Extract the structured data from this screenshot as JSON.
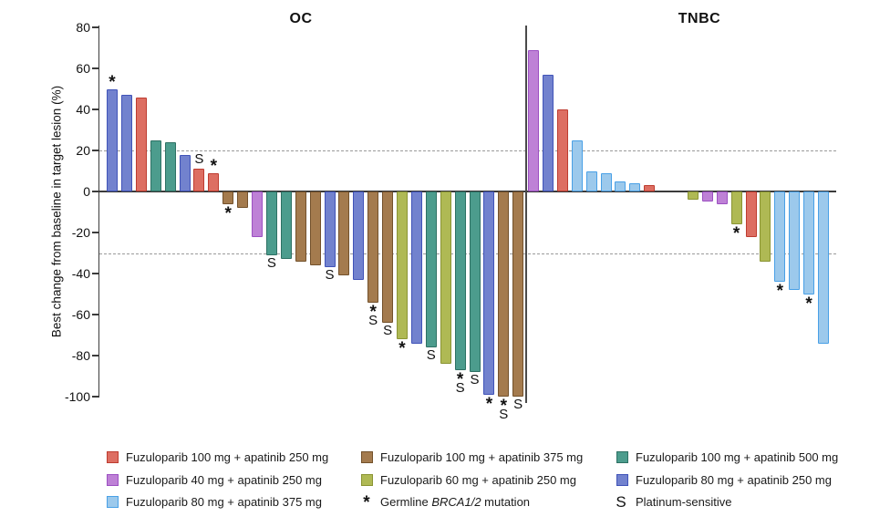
{
  "chart_data": {
    "type": "bar",
    "subtype": "waterfall",
    "ylabel": "Best change from baseline in target lesion (%)",
    "ylim": [
      -100,
      80
    ],
    "yticks": [
      80,
      60,
      40,
      20,
      0,
      -20,
      -40,
      -60,
      -80,
      -100
    ],
    "reference_lines_pct": [
      20,
      -30
    ],
    "grid": "off",
    "legend_position": "bottom",
    "marker_key": {
      "star": "Germline BRCA1/2 mutation",
      "S": "Platinum-sensitive"
    },
    "groups": [
      {
        "id": "f100a250",
        "label": "Fuzuloparib 100 mg + apatinib 250 mg",
        "fill": "#DD6E62",
        "stroke": "#BE3C30"
      },
      {
        "id": "f100a375",
        "label": "Fuzuloparib 100 mg + apatinib 375 mg",
        "fill": "#A47B4E",
        "stroke": "#73512B"
      },
      {
        "id": "f100a500",
        "label": "Fuzuloparib 100 mg + apatinib 500 mg",
        "fill": "#4C9C8D",
        "stroke": "#2E7164"
      },
      {
        "id": "f40a250",
        "label": "Fuzuloparib 40 mg + apatinib 250 mg",
        "fill": "#BE81D6",
        "stroke": "#9C50C2"
      },
      {
        "id": "f60a250",
        "label": "Fuzuloparib 60 mg + apatinib 250 mg",
        "fill": "#AFB954",
        "stroke": "#8A9433"
      },
      {
        "id": "f80a250",
        "label": "Fuzuloparib 80 mg + apatinib 250 mg",
        "fill": "#7282CE",
        "stroke": "#4053B8"
      },
      {
        "id": "f80a375",
        "label": "Fuzuloparib 80 mg + apatinib 375 mg",
        "fill": "#9CC9EC",
        "stroke": "#49A0E6"
      }
    ],
    "panels": [
      {
        "title": "OC",
        "bars": [
          {
            "value": 50,
            "group": "f80a250",
            "marks": [
              "star"
            ]
          },
          {
            "value": 47,
            "group": "f80a250",
            "marks": []
          },
          {
            "value": 46,
            "group": "f100a250",
            "marks": []
          },
          {
            "value": 25,
            "group": "f100a500",
            "marks": []
          },
          {
            "value": 24,
            "group": "f100a500",
            "marks": []
          },
          {
            "value": 18,
            "group": "f80a250",
            "marks": []
          },
          {
            "value": 11,
            "group": "f100a250",
            "marks": [
              "S"
            ]
          },
          {
            "value": 9,
            "group": "f100a250",
            "marks": [
              "star"
            ]
          },
          {
            "value": -6,
            "group": "f100a375",
            "marks": [
              "star"
            ]
          },
          {
            "value": -8,
            "group": "f100a375",
            "marks": []
          },
          {
            "value": -22,
            "group": "f40a250",
            "marks": []
          },
          {
            "value": -31,
            "group": "f100a500",
            "marks": [
              "S"
            ]
          },
          {
            "value": -33,
            "group": "f100a500",
            "marks": []
          },
          {
            "value": -34,
            "group": "f100a375",
            "marks": []
          },
          {
            "value": -36,
            "group": "f100a375",
            "marks": []
          },
          {
            "value": -37,
            "group": "f80a250",
            "marks": [
              "S"
            ]
          },
          {
            "value": -41,
            "group": "f100a375",
            "marks": []
          },
          {
            "value": -43,
            "group": "f80a250",
            "marks": []
          },
          {
            "value": -54,
            "group": "f100a375",
            "marks": [
              "star",
              "S"
            ]
          },
          {
            "value": -64,
            "group": "f100a375",
            "marks": [
              "S"
            ]
          },
          {
            "value": -72,
            "group": "f60a250",
            "marks": [
              "star"
            ]
          },
          {
            "value": -74,
            "group": "f80a250",
            "marks": []
          },
          {
            "value": -76,
            "group": "f100a500",
            "marks": [
              "S"
            ]
          },
          {
            "value": -84,
            "group": "f60a250",
            "marks": []
          },
          {
            "value": -87,
            "group": "f100a500",
            "marks": [
              "star",
              "S"
            ]
          },
          {
            "value": -88,
            "group": "f100a500",
            "marks": [
              "S"
            ]
          },
          {
            "value": -99,
            "group": "f80a250",
            "marks": [
              "star"
            ]
          },
          {
            "value": -100,
            "group": "f100a375",
            "marks": [
              "star",
              "S"
            ]
          },
          {
            "value": -100,
            "group": "f100a375",
            "marks": [
              "S"
            ]
          }
        ]
      },
      {
        "title": "TNBC",
        "bars": [
          {
            "value": 69,
            "group": "f40a250",
            "marks": []
          },
          {
            "value": 57,
            "group": "f80a250",
            "marks": []
          },
          {
            "value": 40,
            "group": "f100a250",
            "marks": []
          },
          {
            "value": 25,
            "group": "f80a375",
            "marks": []
          },
          {
            "value": 10,
            "group": "f80a375",
            "marks": []
          },
          {
            "value": 9,
            "group": "f80a375",
            "marks": []
          },
          {
            "value": 5,
            "group": "f80a375",
            "marks": []
          },
          {
            "value": 4,
            "group": "f80a375",
            "marks": []
          },
          {
            "value": 3,
            "group": "f100a250",
            "marks": []
          },
          {
            "value": 0,
            "group": null,
            "marks": []
          },
          {
            "value": 0,
            "group": null,
            "marks": []
          },
          {
            "value": -4,
            "group": "f60a250",
            "marks": []
          },
          {
            "value": -5,
            "group": "f40a250",
            "marks": []
          },
          {
            "value": -6,
            "group": "f40a250",
            "marks": []
          },
          {
            "value": -16,
            "group": "f60a250",
            "marks": [
              "star"
            ]
          },
          {
            "value": -22,
            "group": "f100a250",
            "marks": []
          },
          {
            "value": -34,
            "group": "f60a250",
            "marks": []
          },
          {
            "value": -44,
            "group": "f80a375",
            "marks": [
              "star"
            ]
          },
          {
            "value": -48,
            "group": "f80a375",
            "marks": []
          },
          {
            "value": -50,
            "group": "f80a375",
            "marks": [
              "star"
            ]
          },
          {
            "value": -74,
            "group": "f80a375",
            "marks": []
          }
        ]
      }
    ]
  },
  "legend": {
    "columns": [
      [
        {
          "symbol": "swatch",
          "group": "f100a250",
          "parts": [
            {
              "t": "Fuzuloparib 100 mg + apatinib 250 mg"
            }
          ]
        },
        {
          "symbol": "swatch",
          "group": "f40a250",
          "parts": [
            {
              "t": "Fuzuloparib 40 mg + apatinib 250 mg"
            }
          ]
        },
        {
          "symbol": "swatch",
          "group": "f80a375",
          "parts": [
            {
              "t": "Fuzuloparib 80 mg + apatinib 375 mg"
            }
          ]
        }
      ],
      [
        {
          "symbol": "swatch",
          "group": "f100a375",
          "parts": [
            {
              "t": "Fuzuloparib 100 mg + apatinib 375 mg"
            }
          ]
        },
        {
          "symbol": "swatch",
          "group": "f60a250",
          "parts": [
            {
              "t": "Fuzuloparib 60 mg + apatinib 250 mg"
            }
          ]
        },
        {
          "symbol": "star",
          "group": null,
          "parts": [
            {
              "t": "Germline "
            },
            {
              "t": "BRCA1/2",
              "i": true
            },
            {
              "t": " mutation"
            }
          ]
        }
      ],
      [
        {
          "symbol": "swatch",
          "group": "f100a500",
          "parts": [
            {
              "t": "Fuzuloparib 100 mg + apatinib 500 mg"
            }
          ]
        },
        {
          "symbol": "swatch",
          "group": "f80a250",
          "parts": [
            {
              "t": "Fuzuloparib 80 mg + apatinib 250 mg"
            }
          ]
        },
        {
          "symbol": "S",
          "group": null,
          "parts": [
            {
              "t": "Platinum-sensitive"
            }
          ]
        }
      ]
    ]
  }
}
